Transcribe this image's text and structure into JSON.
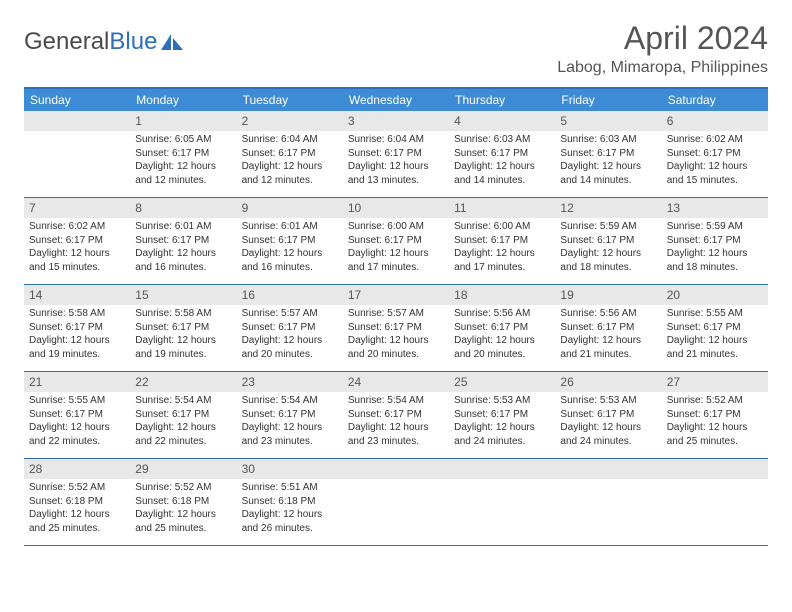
{
  "branding": {
    "word1": "General",
    "word2": "Blue"
  },
  "title": "April 2024",
  "location": "Labog, Mimaropa, Philippines",
  "colors": {
    "header_bg": "#3d8bd4",
    "border": "#2d6fb8",
    "daynum_bg": "#e8e8e8",
    "text": "#333333",
    "title_text": "#555555"
  },
  "day_labels": [
    "Sunday",
    "Monday",
    "Tuesday",
    "Wednesday",
    "Thursday",
    "Friday",
    "Saturday"
  ],
  "weeks": [
    [
      null,
      {
        "n": "1",
        "sunrise": "Sunrise: 6:05 AM",
        "sunset": "Sunset: 6:17 PM",
        "d1": "Daylight: 12 hours",
        "d2": "and 12 minutes."
      },
      {
        "n": "2",
        "sunrise": "Sunrise: 6:04 AM",
        "sunset": "Sunset: 6:17 PM",
        "d1": "Daylight: 12 hours",
        "d2": "and 12 minutes."
      },
      {
        "n": "3",
        "sunrise": "Sunrise: 6:04 AM",
        "sunset": "Sunset: 6:17 PM",
        "d1": "Daylight: 12 hours",
        "d2": "and 13 minutes."
      },
      {
        "n": "4",
        "sunrise": "Sunrise: 6:03 AM",
        "sunset": "Sunset: 6:17 PM",
        "d1": "Daylight: 12 hours",
        "d2": "and 14 minutes."
      },
      {
        "n": "5",
        "sunrise": "Sunrise: 6:03 AM",
        "sunset": "Sunset: 6:17 PM",
        "d1": "Daylight: 12 hours",
        "d2": "and 14 minutes."
      },
      {
        "n": "6",
        "sunrise": "Sunrise: 6:02 AM",
        "sunset": "Sunset: 6:17 PM",
        "d1": "Daylight: 12 hours",
        "d2": "and 15 minutes."
      }
    ],
    [
      {
        "n": "7",
        "sunrise": "Sunrise: 6:02 AM",
        "sunset": "Sunset: 6:17 PM",
        "d1": "Daylight: 12 hours",
        "d2": "and 15 minutes."
      },
      {
        "n": "8",
        "sunrise": "Sunrise: 6:01 AM",
        "sunset": "Sunset: 6:17 PM",
        "d1": "Daylight: 12 hours",
        "d2": "and 16 minutes."
      },
      {
        "n": "9",
        "sunrise": "Sunrise: 6:01 AM",
        "sunset": "Sunset: 6:17 PM",
        "d1": "Daylight: 12 hours",
        "d2": "and 16 minutes."
      },
      {
        "n": "10",
        "sunrise": "Sunrise: 6:00 AM",
        "sunset": "Sunset: 6:17 PM",
        "d1": "Daylight: 12 hours",
        "d2": "and 17 minutes."
      },
      {
        "n": "11",
        "sunrise": "Sunrise: 6:00 AM",
        "sunset": "Sunset: 6:17 PM",
        "d1": "Daylight: 12 hours",
        "d2": "and 17 minutes."
      },
      {
        "n": "12",
        "sunrise": "Sunrise: 5:59 AM",
        "sunset": "Sunset: 6:17 PM",
        "d1": "Daylight: 12 hours",
        "d2": "and 18 minutes."
      },
      {
        "n": "13",
        "sunrise": "Sunrise: 5:59 AM",
        "sunset": "Sunset: 6:17 PM",
        "d1": "Daylight: 12 hours",
        "d2": "and 18 minutes."
      }
    ],
    [
      {
        "n": "14",
        "sunrise": "Sunrise: 5:58 AM",
        "sunset": "Sunset: 6:17 PM",
        "d1": "Daylight: 12 hours",
        "d2": "and 19 minutes."
      },
      {
        "n": "15",
        "sunrise": "Sunrise: 5:58 AM",
        "sunset": "Sunset: 6:17 PM",
        "d1": "Daylight: 12 hours",
        "d2": "and 19 minutes."
      },
      {
        "n": "16",
        "sunrise": "Sunrise: 5:57 AM",
        "sunset": "Sunset: 6:17 PM",
        "d1": "Daylight: 12 hours",
        "d2": "and 20 minutes."
      },
      {
        "n": "17",
        "sunrise": "Sunrise: 5:57 AM",
        "sunset": "Sunset: 6:17 PM",
        "d1": "Daylight: 12 hours",
        "d2": "and 20 minutes."
      },
      {
        "n": "18",
        "sunrise": "Sunrise: 5:56 AM",
        "sunset": "Sunset: 6:17 PM",
        "d1": "Daylight: 12 hours",
        "d2": "and 20 minutes."
      },
      {
        "n": "19",
        "sunrise": "Sunrise: 5:56 AM",
        "sunset": "Sunset: 6:17 PM",
        "d1": "Daylight: 12 hours",
        "d2": "and 21 minutes."
      },
      {
        "n": "20",
        "sunrise": "Sunrise: 5:55 AM",
        "sunset": "Sunset: 6:17 PM",
        "d1": "Daylight: 12 hours",
        "d2": "and 21 minutes."
      }
    ],
    [
      {
        "n": "21",
        "sunrise": "Sunrise: 5:55 AM",
        "sunset": "Sunset: 6:17 PM",
        "d1": "Daylight: 12 hours",
        "d2": "and 22 minutes."
      },
      {
        "n": "22",
        "sunrise": "Sunrise: 5:54 AM",
        "sunset": "Sunset: 6:17 PM",
        "d1": "Daylight: 12 hours",
        "d2": "and 22 minutes."
      },
      {
        "n": "23",
        "sunrise": "Sunrise: 5:54 AM",
        "sunset": "Sunset: 6:17 PM",
        "d1": "Daylight: 12 hours",
        "d2": "and 23 minutes."
      },
      {
        "n": "24",
        "sunrise": "Sunrise: 5:54 AM",
        "sunset": "Sunset: 6:17 PM",
        "d1": "Daylight: 12 hours",
        "d2": "and 23 minutes."
      },
      {
        "n": "25",
        "sunrise": "Sunrise: 5:53 AM",
        "sunset": "Sunset: 6:17 PM",
        "d1": "Daylight: 12 hours",
        "d2": "and 24 minutes."
      },
      {
        "n": "26",
        "sunrise": "Sunrise: 5:53 AM",
        "sunset": "Sunset: 6:17 PM",
        "d1": "Daylight: 12 hours",
        "d2": "and 24 minutes."
      },
      {
        "n": "27",
        "sunrise": "Sunrise: 5:52 AM",
        "sunset": "Sunset: 6:17 PM",
        "d1": "Daylight: 12 hours",
        "d2": "and 25 minutes."
      }
    ],
    [
      {
        "n": "28",
        "sunrise": "Sunrise: 5:52 AM",
        "sunset": "Sunset: 6:18 PM",
        "d1": "Daylight: 12 hours",
        "d2": "and 25 minutes."
      },
      {
        "n": "29",
        "sunrise": "Sunrise: 5:52 AM",
        "sunset": "Sunset: 6:18 PM",
        "d1": "Daylight: 12 hours",
        "d2": "and 25 minutes."
      },
      {
        "n": "30",
        "sunrise": "Sunrise: 5:51 AM",
        "sunset": "Sunset: 6:18 PM",
        "d1": "Daylight: 12 hours",
        "d2": "and 26 minutes."
      },
      null,
      null,
      null,
      null
    ]
  ]
}
